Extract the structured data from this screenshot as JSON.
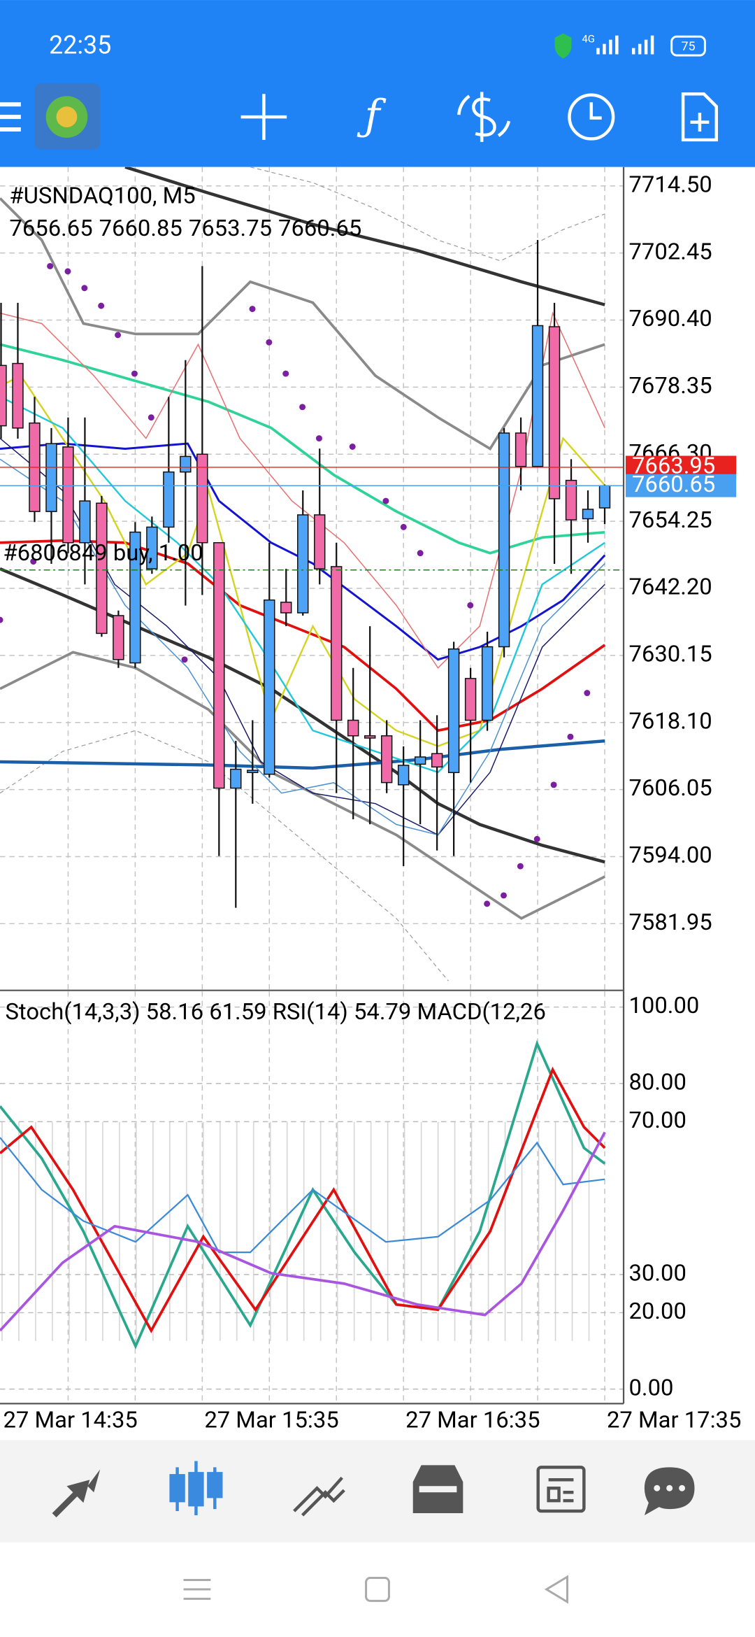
{
  "status_bar": {
    "time": "22:35",
    "network": "4G",
    "battery": "75"
  },
  "chart": {
    "symbol": "#USNDAQ100, M5",
    "ylim": [
      7570.15,
      7717.9
    ],
    "price_ticks": [
      {
        "value": 7714.5,
        "label": "7714.50"
      },
      {
        "value": 7702.45,
        "label": "7702.45"
      },
      {
        "value": 7690.4,
        "label": "7690.40"
      },
      {
        "value": 7678.35,
        "label": "7678.35"
      },
      {
        "value": 7666.3,
        "label": "7666.30"
      },
      {
        "value": 7654.25,
        "label": "7654.25"
      },
      {
        "value": 7642.2,
        "label": "7642.20"
      },
      {
        "value": 7630.15,
        "label": "7630.15"
      },
      {
        "value": 7618.1,
        "label": "7618.10"
      },
      {
        "value": 7606.05,
        "label": "7606.05"
      },
      {
        "value": 7594,
        "label": "7594.00"
      },
      {
        "value": 7581.95,
        "label": "7581.95"
      }
    ],
    "candles": {
      "open": [
        7682.25,
        7682.6,
        7671.9,
        7656.0,
        7667.6,
        7650.4,
        7657.5,
        7637.3,
        7628.8,
        7645.7,
        7653.2,
        7663.1,
        7666.3,
        7650.4,
        7606.3,
        7609.1,
        7608.8,
        7639.7,
        7637.8,
        7655.4,
        7646.1,
        7618.5,
        7615.7,
        7615.7,
        7606.9,
        7610.6,
        7612.5,
        7609.1,
        7626.0,
        7618.5,
        7631.7,
        7670.1,
        7664.1,
        7689.2,
        7661.6,
        7654.7,
        7656.65
      ],
      "high": [
        7693.5,
        7693.5,
        7676.6,
        7671.0,
        7672.9,
        7672.9,
        7658.8,
        7638.2,
        7654.1,
        7655.1,
        7676.6,
        7683.2,
        7700.1,
        7650.4,
        7614.8,
        7618.5,
        7650.4,
        7645.7,
        7659.8,
        7667.3,
        7650.4,
        7627.9,
        7635.4,
        7618.5,
        7613.8,
        7618.5,
        7619.4,
        7632.6,
        7627.9,
        7634.4,
        7671.0,
        7672.9,
        7704.8,
        7693.5,
        7665.4,
        7659.8,
        7660.85
      ],
      "low": [
        7669.1,
        7669.1,
        7654.1,
        7646.6,
        7648.5,
        7642.9,
        7633.5,
        7627.9,
        7627.9,
        7644.8,
        7650.4,
        7639.1,
        7641.0,
        7594.1,
        7584.8,
        7603.5,
        7608.2,
        7635.4,
        7637.3,
        7642.9,
        7605.4,
        7600.7,
        7599.8,
        7605.4,
        7592.3,
        7599.8,
        7595.1,
        7594.1,
        7607.3,
        7616.6,
        7629.8,
        7659.8,
        7664.1,
        7646.6,
        7644.8,
        7650.4,
        7653.75
      ],
      "close": [
        7671.4,
        7671.0,
        7656.0,
        7668.2,
        7650.4,
        7657.9,
        7634.1,
        7629.4,
        7652.3,
        7653.2,
        7663.1,
        7665.9,
        7650.4,
        7606.3,
        7609.7,
        7609.5,
        7640.1,
        7637.8,
        7655.4,
        7645.7,
        7618.5,
        7615.7,
        7615.3,
        7607.3,
        7610.4,
        7611.9,
        7610.1,
        7631.3,
        7618.5,
        7631.7,
        7670.1,
        7664.1,
        7689.4,
        7658.3,
        7654.5,
        7656.4,
        7660.65
      ]
    },
    "ask": 7663.95,
    "trade": {
      "label": "#6806849 buy, 1.00",
      "price": 7645.5
    }
  },
  "indicator": {
    "label": "Stoch(14,3,3) 58.16 61.59 RSI(14) 54.79 MACD(12,26",
    "ylim": [
      -3.8,
      104.1
    ],
    "yticks": [
      {
        "value": 100,
        "label": "100.00"
      },
      {
        "value": 80,
        "label": "80.00"
      },
      {
        "value": 70,
        "label": "70.00"
      },
      {
        "value": 30,
        "label": "30.00"
      },
      {
        "value": 20,
        "label": "20.00"
      },
      {
        "value": 0,
        "label": "0.00"
      }
    ]
  },
  "time_labels": [
    "27 Mar 14:35",
    "27 Mar 15:35",
    "27 Mar 16:35",
    "27 Mar 17:35"
  ]
}
